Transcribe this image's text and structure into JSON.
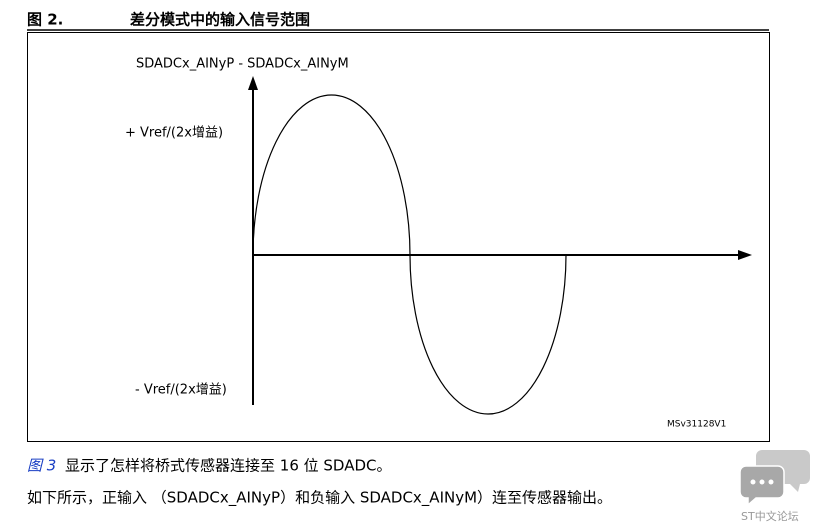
{
  "figure": {
    "number": "图 2.",
    "title": "差分模式中的输入信号范围",
    "axis_label": "SDADCx_AINyP - SDADCx_AINyM",
    "positive_label": "+ Vref/(2x增益)",
    "negative_label": "- Vref/(2x增益)",
    "code": "MSv31128V1"
  },
  "body": {
    "ref": "图 3",
    "line1": "显示了怎样将桥式传感器连接至 16 位 SDADC。",
    "line2": "如下所示，正输入 （SDADCx_AINyP）和负输入 SDADCx_AINyM）连至传感器输出。"
  },
  "watermark": "ST中文论坛"
}
